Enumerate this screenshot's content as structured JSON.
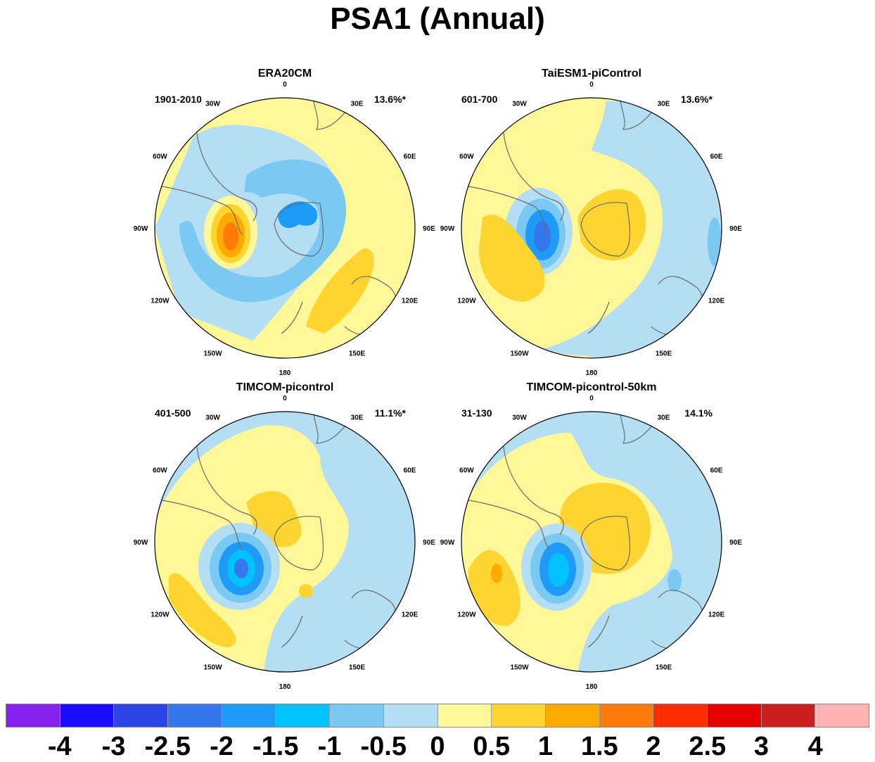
{
  "title": "PSA1 (Annual)",
  "longitude_labels": [
    "0",
    "30E",
    "60E",
    "90E",
    "120E",
    "150E",
    "180",
    "150W",
    "120W",
    "90W",
    "60W",
    "30W"
  ],
  "panels": [
    {
      "title": "ERA20CM",
      "period": "1901-2010",
      "variance": "13.6%*"
    },
    {
      "title": "TaiESM1-piControl",
      "period": "601-700",
      "variance": "13.6%*"
    },
    {
      "title": "TIMCOM-picontrol",
      "period": "401-500",
      "variance": "11.1%*"
    },
    {
      "title": "TIMCOM-picontrol-50km",
      "period": "31-130",
      "variance": "14.1%"
    }
  ],
  "colorbar": {
    "colors": [
      "#8522f0",
      "#1c0cff",
      "#2d44e8",
      "#3677ee",
      "#1e9af7",
      "#01c2ff",
      "#79c9f2",
      "#b4def4",
      "#fff899",
      "#fed430",
      "#ffaa00",
      "#ff7a0a",
      "#ff2d00",
      "#e60000",
      "#cc1e1e",
      "#ffb3b3"
    ],
    "labels": [
      "-4",
      "-3",
      "-2.5",
      "-2",
      "-1.5",
      "-1",
      "-0.5",
      "0",
      "0.5",
      "1",
      "1.5",
      "2",
      "2.5",
      "3",
      "4"
    ]
  }
}
